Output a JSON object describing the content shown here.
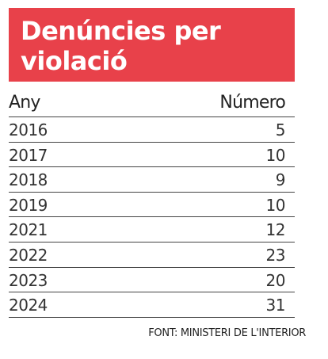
{
  "colors": {
    "title_background": "#e8414a",
    "title_text": "#ffffff",
    "rule": "#444444"
  },
  "chart_data": {
    "type": "table",
    "title": "Denúncies per violació",
    "columns": [
      "Any",
      "Número"
    ],
    "rows": [
      {
        "year": "2016",
        "value": "5"
      },
      {
        "year": "2017",
        "value": "10"
      },
      {
        "year": "2018",
        "value": "9"
      },
      {
        "year": "2019",
        "value": "10"
      },
      {
        "year": "2021",
        "value": "12"
      },
      {
        "year": "2022",
        "value": "23"
      },
      {
        "year": "2023",
        "value": "20"
      },
      {
        "year": "2024",
        "value": "31"
      }
    ],
    "source": "FONT: MINISTERI DE L'INTERIOR"
  }
}
